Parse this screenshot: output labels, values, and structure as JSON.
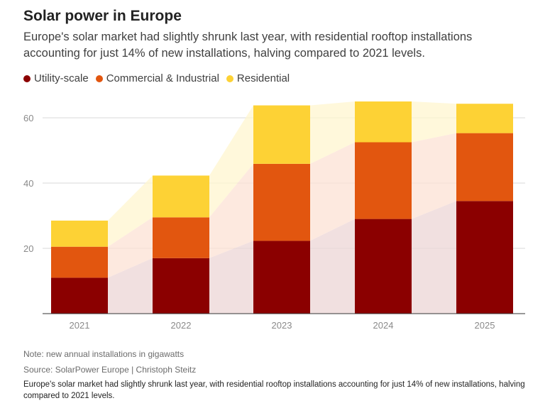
{
  "title": "Solar power in Europe",
  "subtitle": "Europe's solar market had slightly shrunk last year, with residential rooftop installations accounting for just 14% of new installations, halving compared to 2021 levels.",
  "note": "Note: new annual installations in gigawatts",
  "source": "Source: SolarPower Europe | Christoph Steitz",
  "caption": "Europe's solar market had slightly shrunk last year, with residential rooftop installations accounting for just 14% of new installations, halving compared to 2021 levels.",
  "colors": {
    "utility": "#8b0000",
    "commercial": "#e2560f",
    "residential": "#fdd235",
    "grid": "#d9d9d9"
  },
  "chart_data": {
    "type": "bar",
    "stacked": true,
    "categories": [
      "2021",
      "2022",
      "2023",
      "2024",
      "2025"
    ],
    "series": [
      {
        "name": "Utility-scale",
        "values": [
          11,
          17,
          22.3,
          29,
          34.5
        ],
        "color": "#8b0000"
      },
      {
        "name": "Commercial & Industrial",
        "values": [
          9.5,
          12.5,
          23.6,
          23.5,
          20.8
        ],
        "color": "#e2560f"
      },
      {
        "name": "Residential",
        "values": [
          8,
          12.8,
          17.9,
          12.5,
          9
        ],
        "color": "#fdd235"
      }
    ],
    "yticks": [
      20,
      40,
      60
    ],
    "ylim": [
      0,
      65
    ],
    "grid": true,
    "legend": "top-left"
  }
}
